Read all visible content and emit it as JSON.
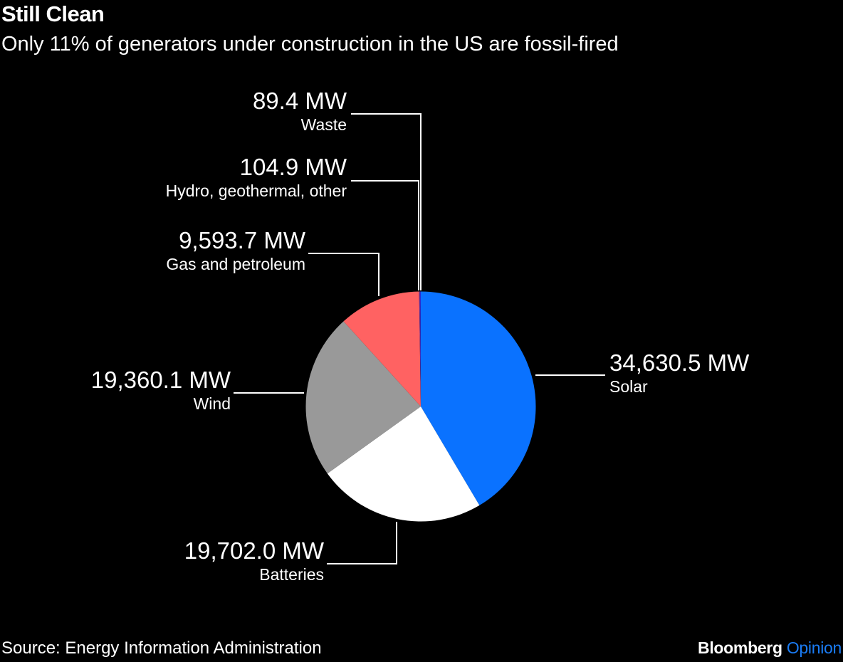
{
  "title": "Still Clean",
  "subtitle": "Only 11% of generators under construction in the US are fossil-fired",
  "source": "Source: Energy Information Administration",
  "logo": {
    "brand": "Bloomberg",
    "section": "Opinion"
  },
  "chart_data": {
    "type": "pie",
    "unit": "MW",
    "slices": [
      {
        "label": "Solar",
        "value": 34630.5,
        "value_label": "34,630.5 MW",
        "color": "#0a72ff"
      },
      {
        "label": "Batteries",
        "value": 19702.0,
        "value_label": "19,702.0 MW",
        "color": "#ffffff"
      },
      {
        "label": "Wind",
        "value": 19360.1,
        "value_label": "19,360.1 MW",
        "color": "#999999"
      },
      {
        "label": "Gas and petroleum",
        "value": 9593.7,
        "value_label": "9,593.7 MW",
        "color": "#ff6262"
      },
      {
        "label": "Hydro, geothermal, other",
        "value": 104.9,
        "value_label": "104.9 MW",
        "color": "#5a2fa0"
      },
      {
        "label": "Waste",
        "value": 89.4,
        "value_label": "89.4 MW",
        "color": "#2b2bd0"
      }
    ]
  }
}
